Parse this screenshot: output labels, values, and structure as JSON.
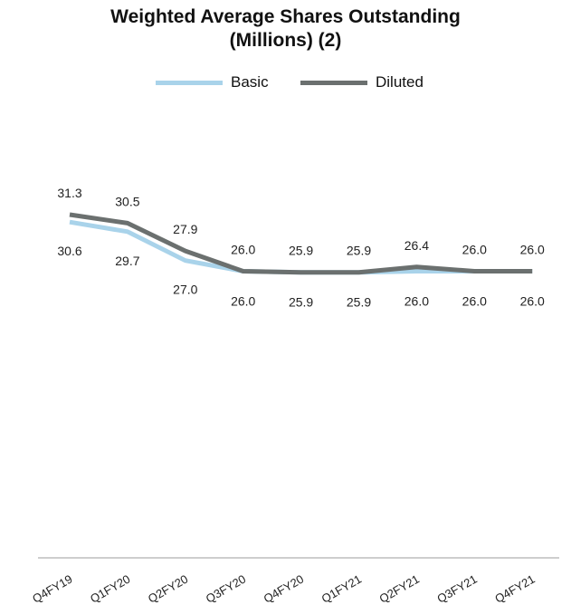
{
  "chart_data": {
    "type": "line",
    "title_lines": [
      "Weighted Average Shares Outstanding",
      "(Millions) (2)"
    ],
    "categories": [
      "Q4FY19",
      "Q1FY20",
      "Q2FY20",
      "Q3FY20",
      "Q4FY20",
      "Q1FY21",
      "Q2FY21",
      "Q3FY21",
      "Q4FY21"
    ],
    "series": [
      {
        "name": "Basic",
        "color": "#a9d3ea",
        "values": [
          30.6,
          29.7,
          27.0,
          26.0,
          25.9,
          25.9,
          26.0,
          26.0,
          26.0
        ],
        "labels": [
          "30.6",
          "29.7",
          "27.0",
          "26.0",
          "25.9",
          "25.9",
          "26.0",
          "26.0",
          "26.0"
        ]
      },
      {
        "name": "Diluted",
        "color": "#6b706f",
        "values": [
          31.3,
          30.5,
          27.9,
          26.0,
          25.9,
          25.9,
          26.4,
          26.0,
          26.0
        ],
        "labels": [
          "31.3",
          "30.5",
          "27.9",
          "26.0",
          "25.9",
          "25.9",
          "26.4",
          "26.0",
          "26.0"
        ]
      }
    ],
    "legend_position": "top-center",
    "grid": false,
    "axis_color": "#b0b0b0"
  }
}
